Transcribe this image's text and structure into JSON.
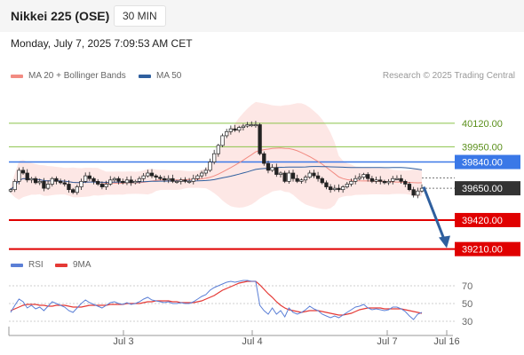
{
  "header": {
    "title": "Nikkei 225 (OSE)",
    "interval": "30 MIN",
    "datetime": "Monday, July 7, 2025 7:09:53 AM CET"
  },
  "legend": {
    "items": [
      {
        "label": "MA 20 + Bollinger Bands",
        "color": "#f28b82"
      },
      {
        "label": "MA 50",
        "color": "#2f5f9e"
      }
    ],
    "rsi_items": [
      {
        "label": "RSI",
        "color": "#5b7fd6"
      },
      {
        "label": "9MA",
        "color": "#e53935"
      }
    ]
  },
  "credit": "Research © 2025 Trading Central",
  "chart_data": [
    {
      "type": "candlestick",
      "title": "Nikkei 225 (OSE)",
      "ylim": [
        39150,
        40370
      ],
      "x_ticks": [
        "Jul 3",
        "Jul 4",
        "Jul 7",
        "Jul 16"
      ],
      "last_price": 39650,
      "levels": [
        {
          "value": 40120,
          "label": "40120.00",
          "kind": "resistance",
          "color": "#8bc34a"
        },
        {
          "value": 39950,
          "label": "39950.00",
          "kind": "resistance",
          "color": "#8bc34a"
        },
        {
          "value": 39840,
          "label": "39840.00",
          "kind": "pivot",
          "color": "#3a78e7"
        },
        {
          "value": 39650,
          "label": "39650.00",
          "kind": "last",
          "color": "#333333"
        },
        {
          "value": 39420,
          "label": "39420.00",
          "kind": "support",
          "color": "#e00000"
        },
        {
          "value": 39210,
          "label": "39210.00",
          "kind": "support",
          "color": "#e00000"
        }
      ],
      "forecast": {
        "from": 39660,
        "to": 39230,
        "direction": "down"
      },
      "closes": [
        39640,
        39700,
        39780,
        39760,
        39710,
        39720,
        39690,
        39700,
        39650,
        39680,
        39720,
        39700,
        39690,
        39680,
        39640,
        39620,
        39660,
        39700,
        39740,
        39720,
        39700,
        39680,
        39660,
        39680,
        39710,
        39720,
        39700,
        39690,
        39710,
        39690,
        39700,
        39720,
        39740,
        39760,
        39740,
        39730,
        39720,
        39710,
        39720,
        39700,
        39700,
        39710,
        39700,
        39700,
        39720,
        39740,
        39760,
        39780,
        39840,
        39900,
        39960,
        40030,
        40060,
        40080,
        40070,
        40090,
        40100,
        40110,
        40110,
        40110,
        39900,
        39830,
        39780,
        39800,
        39750,
        39760,
        39700,
        39760,
        39720,
        39700,
        39710,
        39730,
        39760,
        39740,
        39720,
        39690,
        39660,
        39640,
        39650,
        39640,
        39660,
        39680,
        39700,
        39720,
        39730,
        39750,
        39720,
        39700,
        39710,
        39700,
        39690,
        39700,
        39720,
        39720,
        39700,
        39680,
        39640,
        39600,
        39630,
        39650
      ]
    },
    {
      "type": "line",
      "title": "RSI",
      "ylim": [
        20,
        80
      ],
      "y_ticks": [
        70,
        50,
        30
      ],
      "series": [
        {
          "name": "RSI",
          "color": "#5b7fd6",
          "values": [
            40,
            48,
            55,
            52,
            45,
            48,
            44,
            46,
            42,
            47,
            52,
            50,
            48,
            46,
            42,
            40,
            45,
            50,
            54,
            51,
            49,
            47,
            45,
            48,
            51,
            52,
            50,
            49,
            51,
            49,
            50,
            52,
            55,
            57,
            54,
            53,
            52,
            51,
            52,
            50,
            50,
            51,
            50,
            50,
            52,
            55,
            58,
            60,
            65,
            68,
            70,
            72,
            74,
            75,
            74,
            75,
            76,
            76,
            75,
            75,
            48,
            42,
            38,
            45,
            38,
            42,
            35,
            45,
            40,
            38,
            40,
            43,
            47,
            44,
            42,
            38,
            36,
            34,
            36,
            34,
            37,
            40,
            43,
            46,
            47,
            49,
            45,
            43,
            44,
            43,
            42,
            43,
            46,
            46,
            44,
            41,
            36,
            32,
            38,
            40
          ]
        },
        {
          "name": "9MA",
          "color": "#e53935",
          "values": [
            42,
            44,
            46,
            48,
            49,
            49,
            49,
            48,
            48,
            47,
            47,
            48,
            48,
            48,
            47,
            46,
            46,
            46,
            47,
            48,
            48,
            48,
            48,
            48,
            49,
            49,
            49,
            49,
            50,
            50,
            50,
            50,
            51,
            52,
            52,
            53,
            53,
            53,
            53,
            52,
            52,
            51,
            51,
            51,
            51,
            52,
            53,
            55,
            57,
            59,
            62,
            65,
            67,
            69,
            71,
            73,
            74,
            75,
            75,
            75,
            71,
            66,
            61,
            57,
            52,
            48,
            45,
            43,
            42,
            41,
            40,
            41,
            42,
            42,
            42,
            41,
            40,
            39,
            38,
            37,
            37,
            38,
            39,
            41,
            43,
            44,
            45,
            45,
            45,
            45,
            44,
            44,
            44,
            44,
            44,
            43,
            42,
            41,
            40,
            39
          ]
        }
      ]
    }
  ]
}
